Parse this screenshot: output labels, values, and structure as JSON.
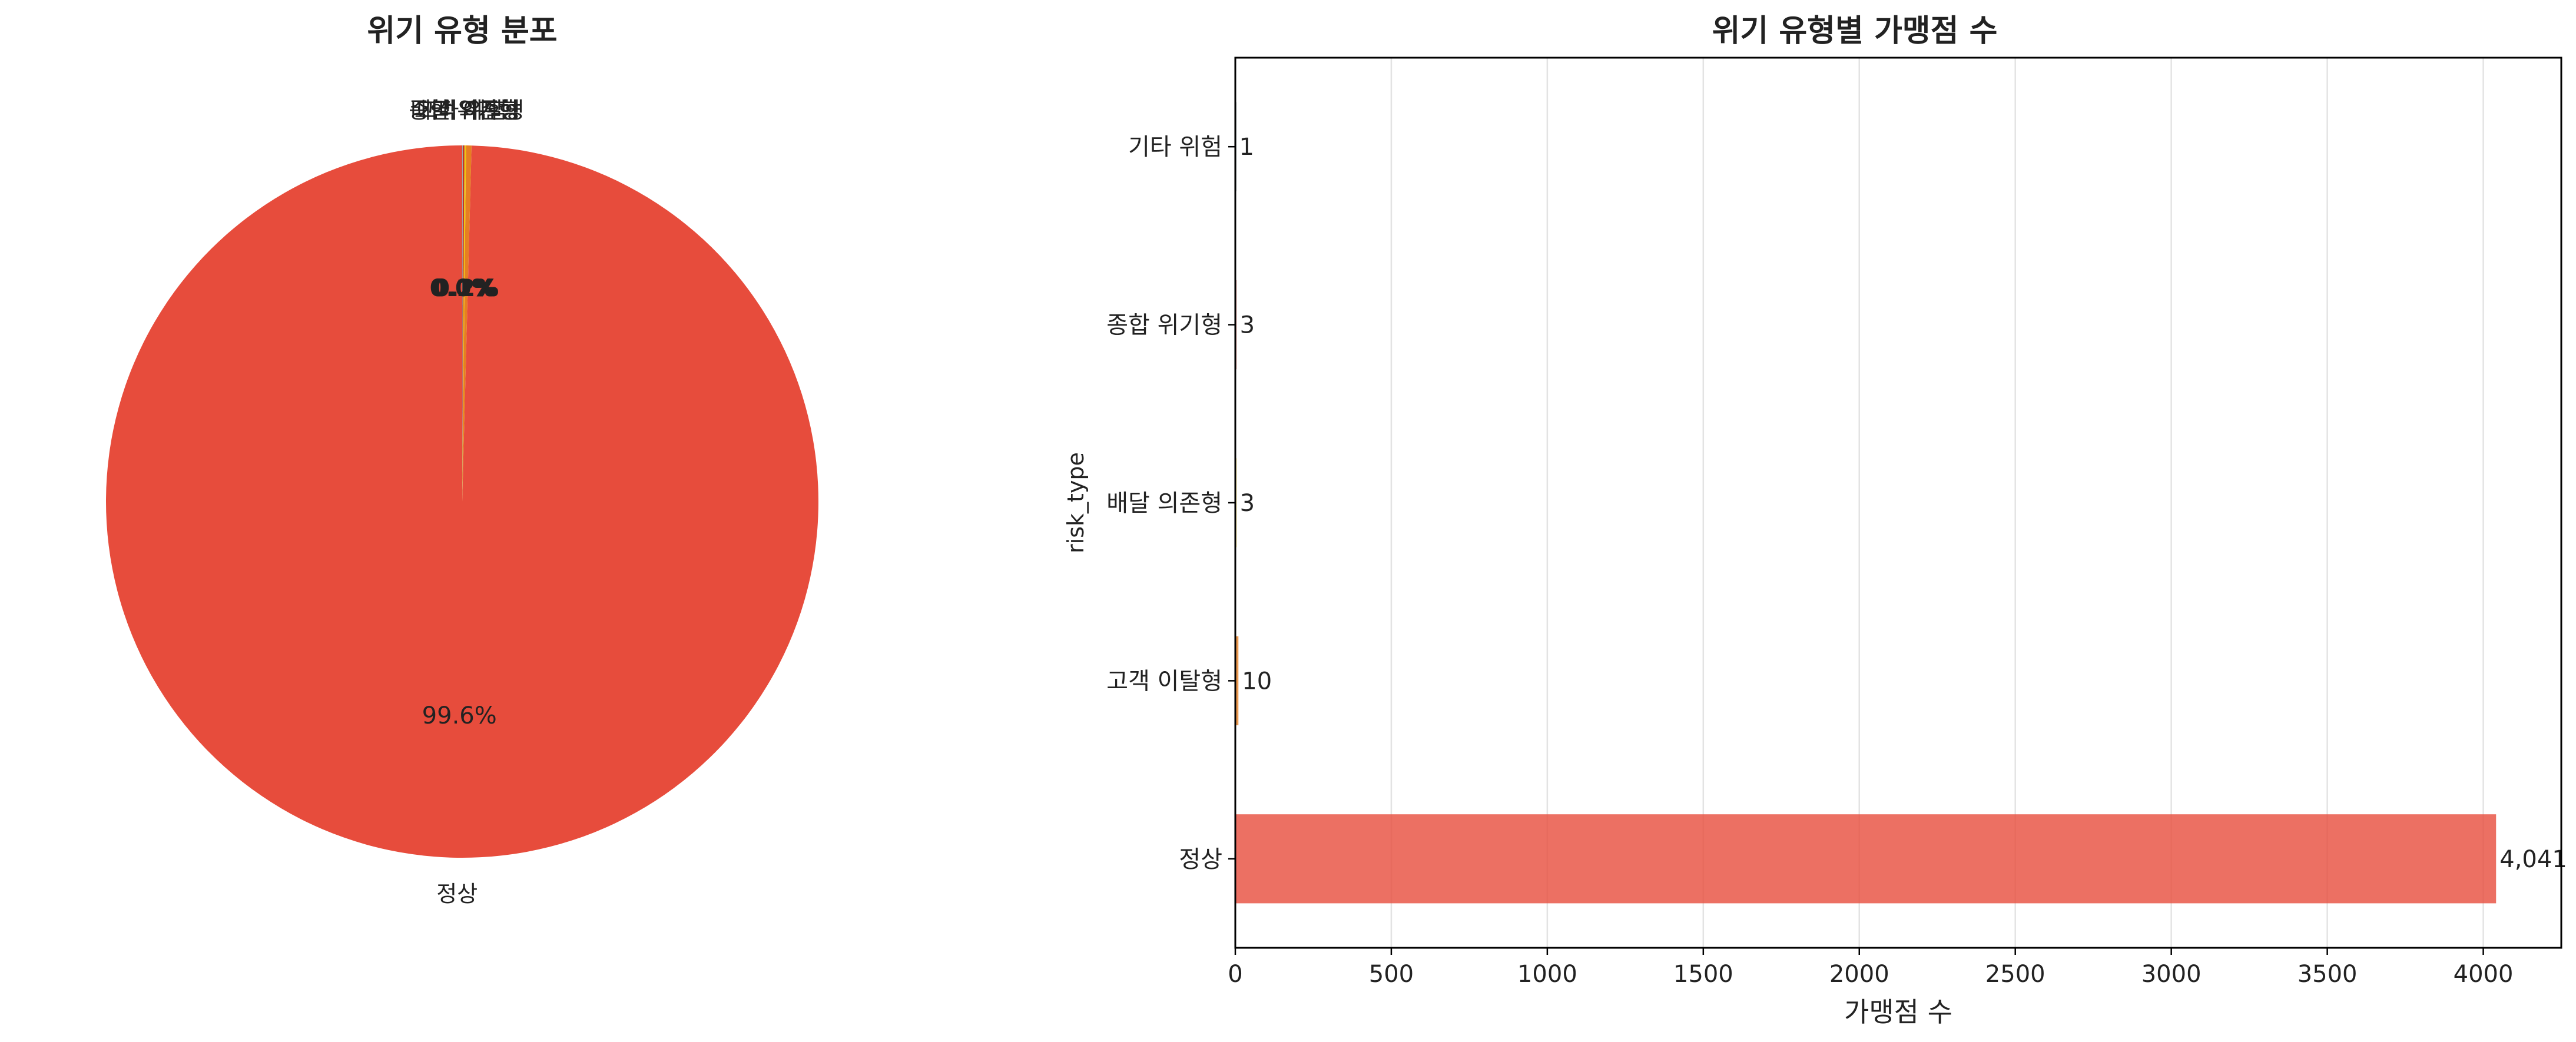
{
  "chart_data": [
    {
      "type": "pie",
      "title": "위기 유형 분포",
      "slices": [
        {
          "label": "정상",
          "value": 4041,
          "pct_label": "99.6%",
          "color": "#e74c3c"
        },
        {
          "label": "고객 이탈형",
          "value": 10,
          "pct_label": "0.2%",
          "color": "#e67e22"
        },
        {
          "label": "배달 의존형",
          "value": 3,
          "pct_label": "0.1%",
          "color": "#f1c40f"
        },
        {
          "label": "종합 위기형",
          "value": 3,
          "pct_label": "0.1%",
          "color": "#c0392b"
        },
        {
          "label": "기타 위험",
          "value": 1,
          "pct_label": "0.0%",
          "color": "#95a5a6"
        }
      ]
    },
    {
      "type": "bar",
      "orientation": "horizontal",
      "title": "위기 유형별 가맹점 수",
      "xlabel": "가맹점 수",
      "ylabel": "risk_type",
      "categories": [
        "기타 위험",
        "종합 위기형",
        "배달 의존형",
        "고객 이탈형",
        "정상"
      ],
      "values": [
        1,
        3,
        3,
        10,
        4041
      ],
      "value_labels": [
        "1",
        "3",
        "3",
        "10",
        "4,041"
      ],
      "colors": [
        "#95a5a6",
        "#c0392b",
        "#f1c40f",
        "#e67e22",
        "#e74c3c"
      ],
      "xlim": [
        0,
        4250
      ],
      "xticks": [
        0,
        500,
        1000,
        1500,
        2000,
        2500,
        3000,
        3500,
        4000
      ],
      "grid": "x"
    }
  ]
}
